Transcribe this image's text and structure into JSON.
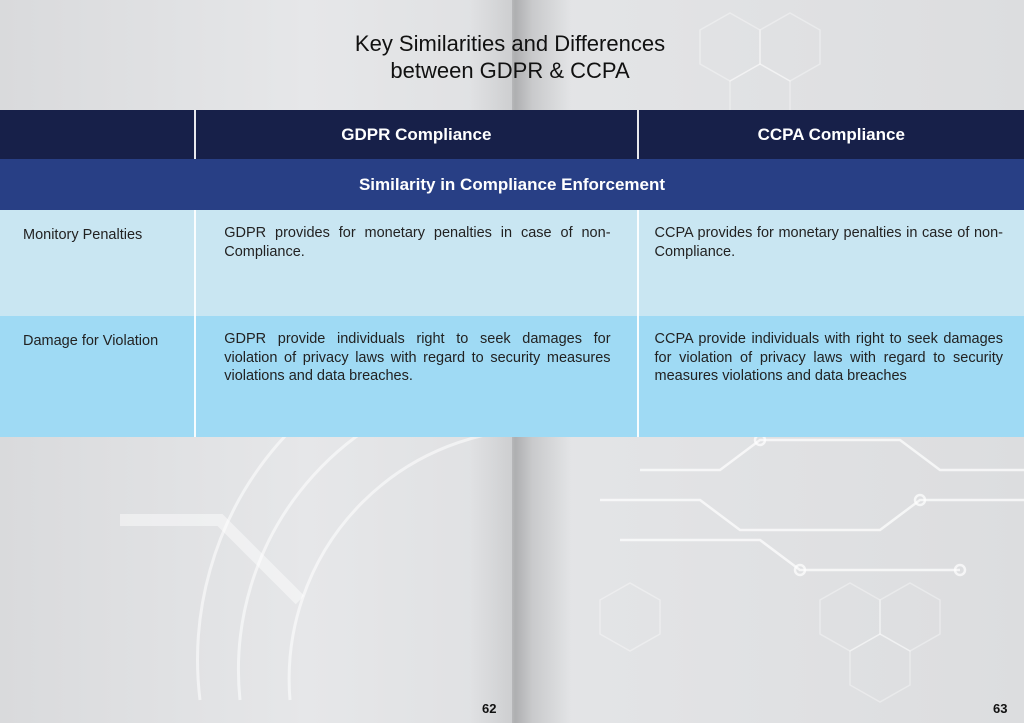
{
  "title": {
    "line1": "Key Similarities and Differences",
    "line2": "between GDPR & CCPA"
  },
  "table": {
    "headers": [
      "",
      "GDPR Compliance",
      "CCPA Compliance"
    ],
    "section_title": "Similarity in Compliance Enforcement",
    "rows": [
      {
        "label": "Monitory Penalties",
        "gdpr": "GDPR provides for monetary penalties in case of non-Compliance.",
        "ccpa": "CCPA provides for monetary penalties in case of non-Compliance."
      },
      {
        "label": "Damage for Violation",
        "gdpr": "GDPR provide individuals right to seek damages for violation of privacy laws with regard to security measures violations and data breaches.",
        "ccpa": "CCPA provide individuals with right to seek damages for violation of privacy laws with regard to security measures violations and data breaches"
      }
    ]
  },
  "pages": {
    "left": "62",
    "right": "63"
  },
  "colors": {
    "header_bg": "#172049",
    "section_bg": "#283f85",
    "row1_bg": "#c9e6f2",
    "row2_bg": "#9fdaf4"
  }
}
